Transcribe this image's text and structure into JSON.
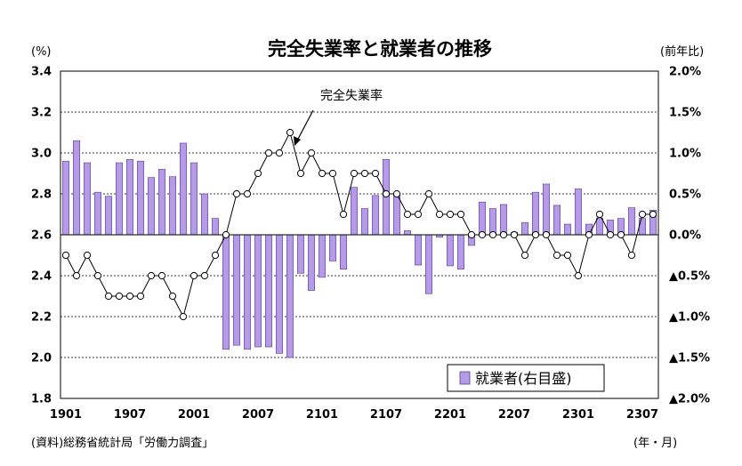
{
  "chart_data": {
    "type": "bar",
    "title": "完全失業率と就業者の推移",
    "left_unit": "(%)",
    "right_unit": "(前年比)",
    "x_unit": "(年・月)",
    "source": "(資料)総務省統計局「労働力調査」",
    "annotation": "完全失業率",
    "left_axis": {
      "min": 1.8,
      "max": 3.4,
      "ticks": [
        "1.8",
        "2.0",
        "2.2",
        "2.4",
        "2.6",
        "2.8",
        "3.0",
        "3.2",
        "3.4"
      ]
    },
    "right_axis": {
      "min": -2.0,
      "max": 2.0,
      "ticks": [
        "▲2.0%",
        "▲1.5%",
        "▲1.0%",
        "▲0.5%",
        "0.0%",
        "0.5%",
        "1.0%",
        "1.5%",
        "2.0%"
      ]
    },
    "x_tick_labels": [
      {
        "index": 0,
        "label": "1901"
      },
      {
        "index": 6,
        "label": "1907"
      },
      {
        "index": 12,
        "label": "2001"
      },
      {
        "index": 18,
        "label": "2007"
      },
      {
        "index": 24,
        "label": "2101"
      },
      {
        "index": 30,
        "label": "2107"
      },
      {
        "index": 36,
        "label": "2201"
      },
      {
        "index": 42,
        "label": "2207"
      },
      {
        "index": 48,
        "label": "2301"
      },
      {
        "index": 54,
        "label": "2307"
      }
    ],
    "grid": true,
    "legend_position": "bottom-right",
    "series": [
      {
        "name": "就業者(右目盛)",
        "axis": "right",
        "kind": "bar",
        "color": "#b59ae6",
        "border": "#5a3a9a",
        "values": [
          0.9,
          1.15,
          0.88,
          0.52,
          0.47,
          0.88,
          0.92,
          0.9,
          0.7,
          0.8,
          0.71,
          1.12,
          0.88,
          0.5,
          0.2,
          -1.4,
          -1.35,
          -1.4,
          -1.37,
          -1.37,
          -1.45,
          -1.5,
          -0.47,
          -0.68,
          -0.52,
          -0.32,
          -0.42,
          0.58,
          0.32,
          0.48,
          0.92,
          0.5,
          0.05,
          -0.37,
          -0.72,
          -0.03,
          -0.38,
          -0.42,
          -0.13,
          0.4,
          0.32,
          0.37,
          0.03,
          0.15,
          0.52,
          0.62,
          0.36,
          0.13,
          0.56,
          0.13,
          0.2,
          0.18,
          0.2,
          0.33,
          0.2,
          0.3
        ]
      },
      {
        "name": "完全失業率",
        "axis": "left",
        "kind": "line",
        "color": "#000000",
        "values": [
          2.5,
          2.4,
          2.5,
          2.4,
          2.3,
          2.3,
          2.3,
          2.3,
          2.4,
          2.4,
          2.3,
          2.2,
          2.4,
          2.4,
          2.5,
          2.6,
          2.8,
          2.8,
          2.9,
          3.0,
          3.0,
          3.1,
          2.9,
          3.0,
          2.9,
          2.9,
          2.7,
          2.9,
          2.9,
          2.9,
          2.8,
          2.8,
          2.7,
          2.7,
          2.8,
          2.7,
          2.7,
          2.7,
          2.6,
          2.6,
          2.6,
          2.6,
          2.6,
          2.5,
          2.6,
          2.6,
          2.5,
          2.5,
          2.4,
          2.6,
          2.7,
          2.6,
          2.6,
          2.5,
          2.7,
          2.7
        ]
      }
    ]
  }
}
